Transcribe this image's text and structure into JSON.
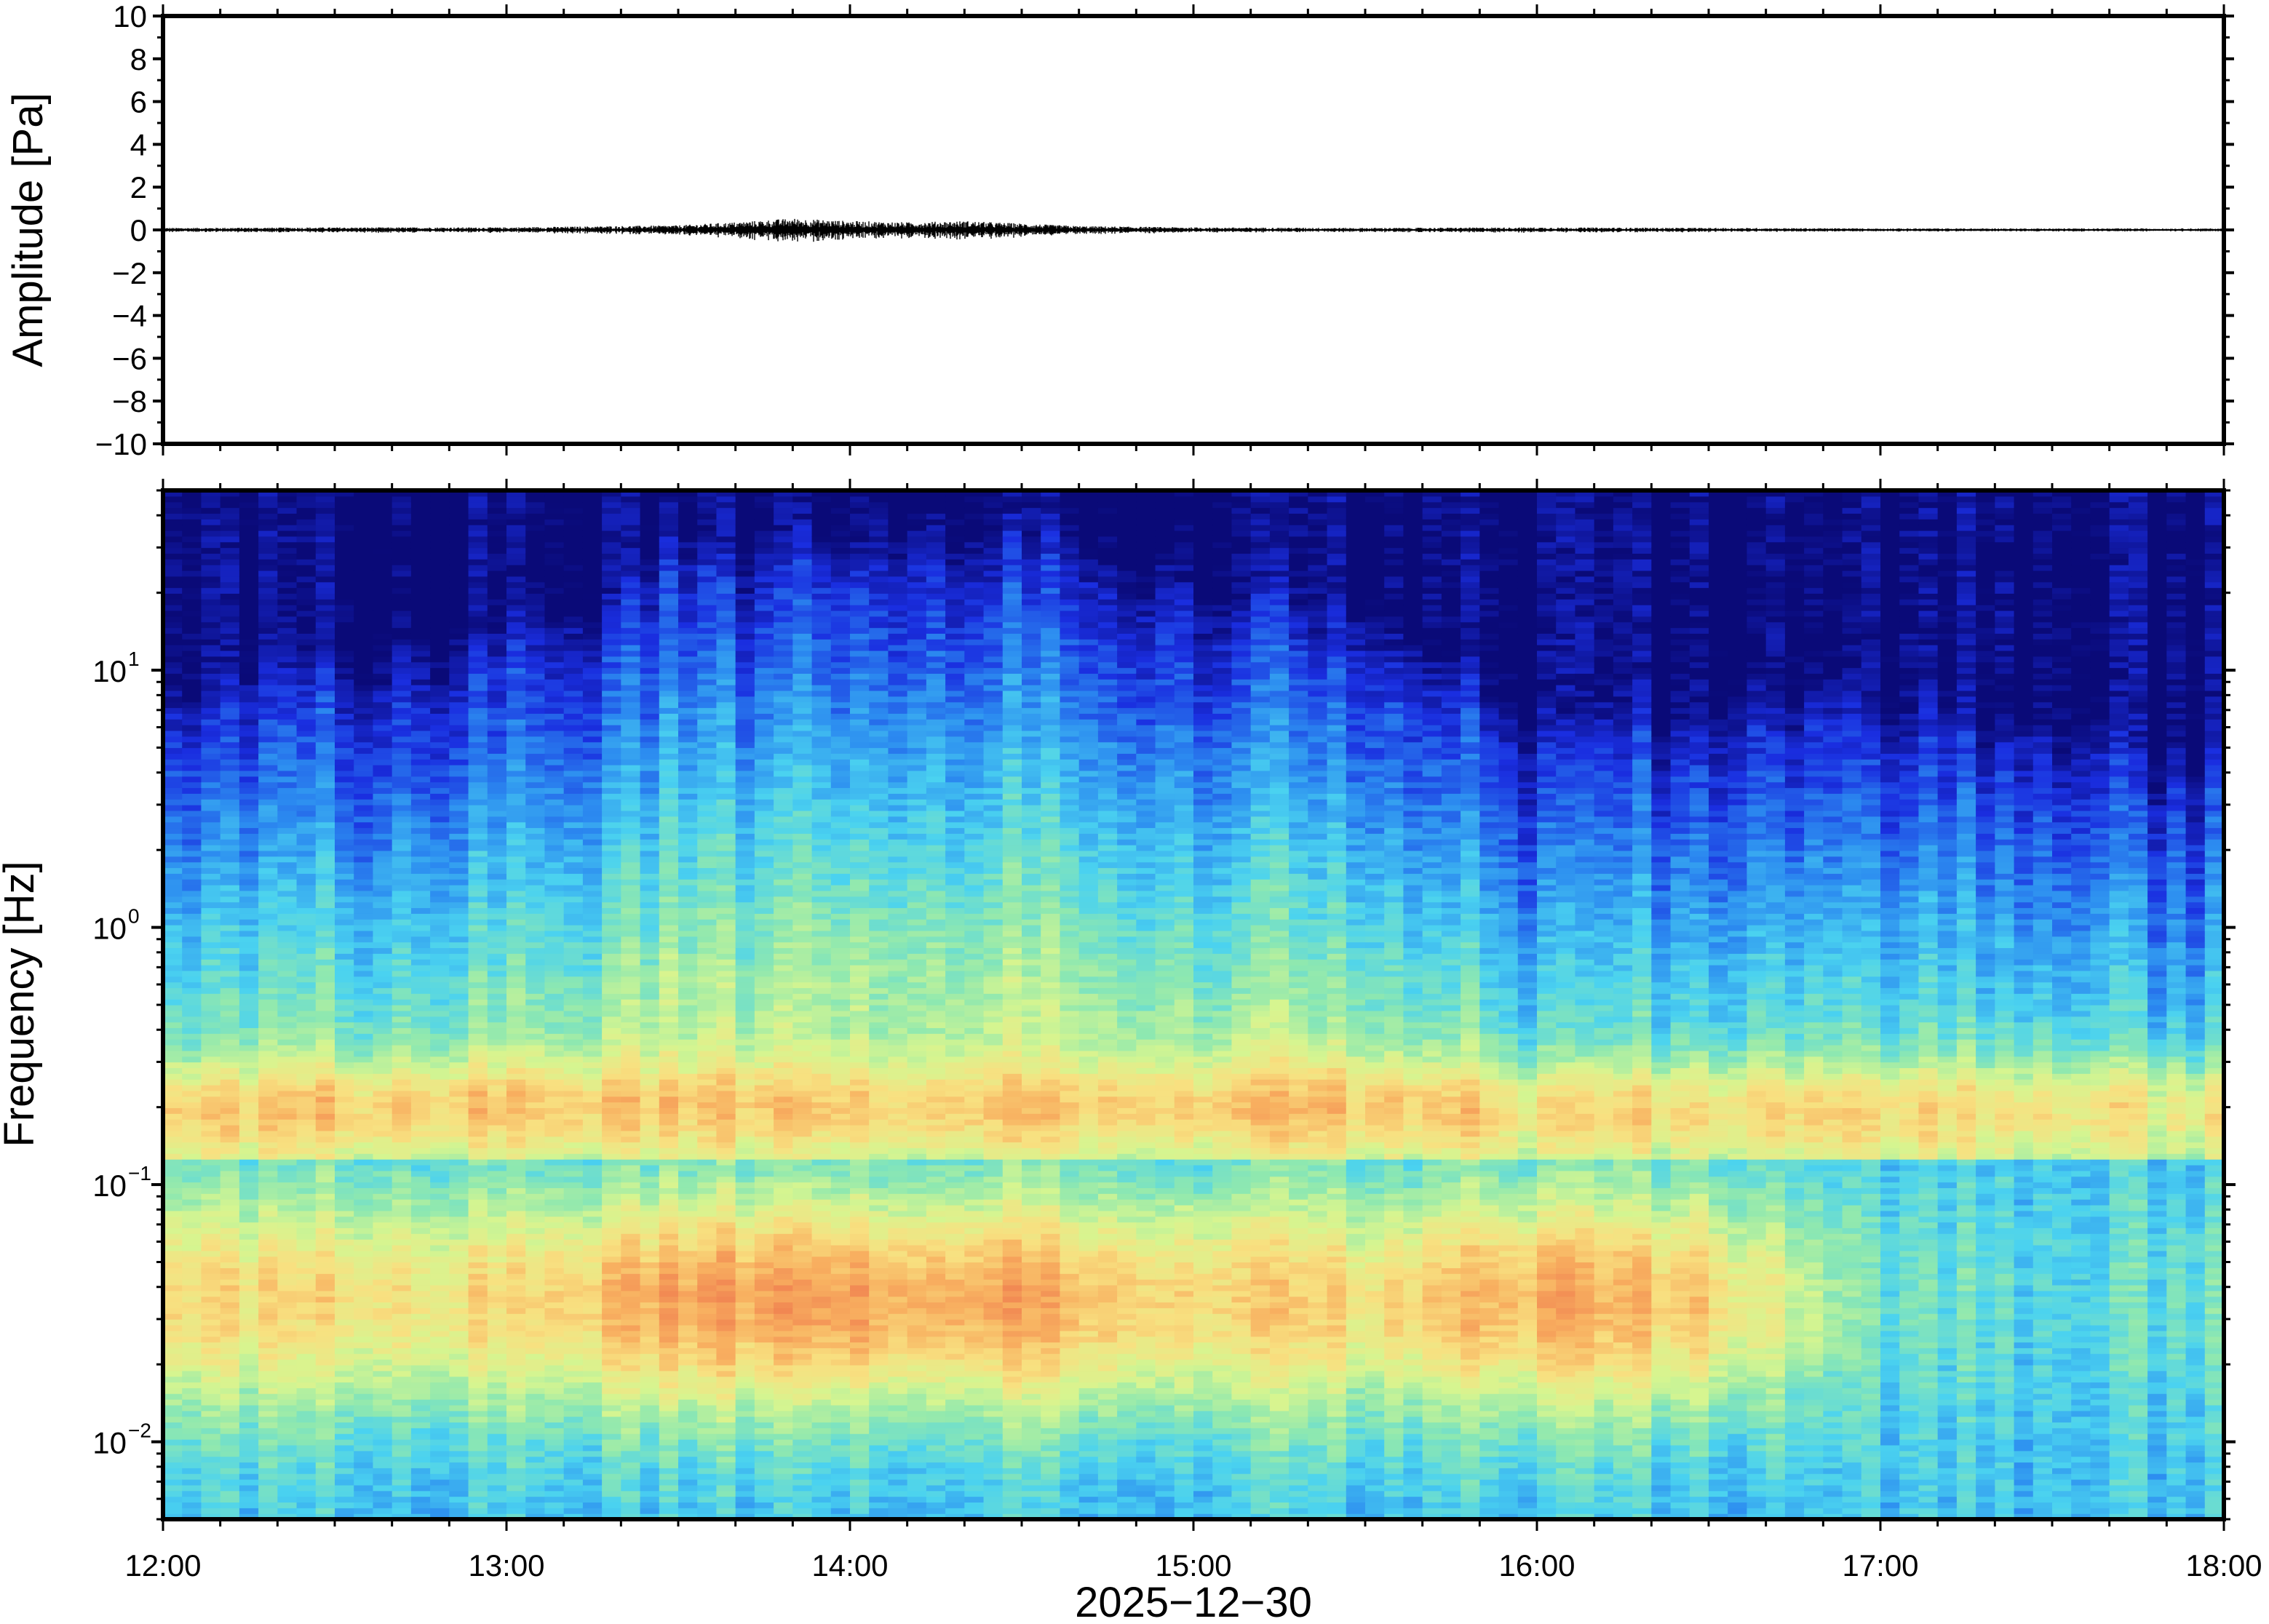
{
  "chart_data": [
    {
      "type": "line",
      "panel": "waveform",
      "ylabel": "Amplitude [Pa]",
      "ylim": [
        -10,
        10
      ],
      "yticks": [
        10,
        8,
        6,
        4,
        2,
        0,
        -2,
        -4,
        -6,
        -8,
        -10
      ],
      "ytick_labels": [
        "10",
        "8",
        "6",
        "4",
        "2",
        "0",
        "−2",
        "−4",
        "−6",
        "−8",
        "−10"
      ],
      "xlim": [
        "12:00",
        "18:00"
      ],
      "line_color": "#000000",
      "series": [
        {
          "x": [
            "12:00",
            "12:30",
            "13:00",
            "13:30",
            "13:40",
            "13:50",
            "14:00",
            "14:10",
            "14:20",
            "14:30",
            "14:40",
            "15:00",
            "15:30",
            "16:00",
            "16:30",
            "17:00",
            "17:30",
            "18:00"
          ],
          "y_envelope": [
            0.08,
            0.1,
            0.1,
            0.18,
            0.3,
            0.45,
            0.35,
            0.3,
            0.35,
            0.25,
            0.15,
            0.1,
            0.08,
            0.1,
            0.08,
            0.06,
            0.06,
            0.06
          ]
        }
      ]
    },
    {
      "type": "heatmap",
      "panel": "spectrogram",
      "ylabel": "Frequency [Hz]",
      "yscale": "log",
      "ylim": [
        0.005,
        50
      ],
      "yticks": [
        0.01,
        0.1,
        1,
        10
      ],
      "ytick_labels": [
        {
          "base": "10",
          "exp": "−2"
        },
        {
          "base": "10",
          "exp": "−1"
        },
        {
          "base": "10",
          "exp": "0"
        },
        {
          "base": "10",
          "exp": "1"
        }
      ],
      "xlabel": "2025−12−30",
      "xlim": [
        "12:00",
        "18:00"
      ],
      "xticks": [
        "12:00",
        "13:00",
        "14:00",
        "15:00",
        "16:00",
        "17:00",
        "18:00"
      ],
      "colormap": [
        "#0a0a78",
        "#1a2ee0",
        "#2c8cf0",
        "#4ad2f0",
        "#8ee8b0",
        "#d6f590",
        "#f8e080",
        "#f8b060",
        "#f08050"
      ],
      "column_minutes": 10,
      "intensity_profile": {
        "comment_free_hours": [
          12,
          12.5,
          13,
          13.5,
          14,
          14.5,
          15,
          15.5,
          16,
          16.5,
          17,
          17.5,
          18
        ],
        "upper_cutoff_hz": [
          6,
          7,
          9,
          20,
          25,
          22,
          15,
          10,
          4,
          5,
          5,
          4,
          3
        ],
        "low_band_peak_level": [
          0.75,
          0.75,
          0.75,
          0.9,
          0.92,
          0.88,
          0.8,
          0.75,
          0.88,
          0.8,
          0.45,
          0.4,
          0.45
        ]
      }
    }
  ]
}
